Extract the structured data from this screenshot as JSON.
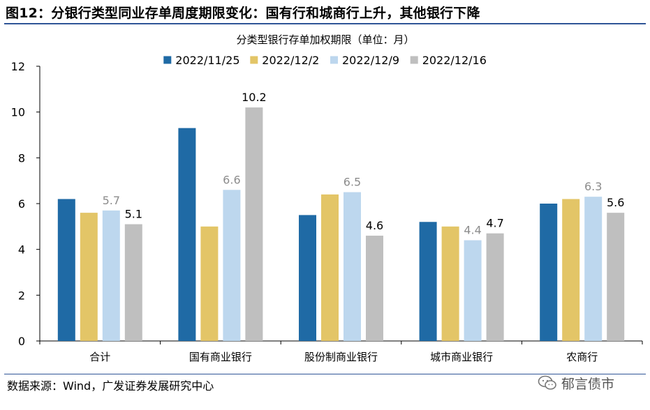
{
  "figure": {
    "title": "图12：分银行类型同业存单周度期限变化：国有行和城商行上升，其他银行下降",
    "source": "数据来源：Wind，广发证券发展研究中心",
    "watermark": "郁言债市"
  },
  "chart_data": {
    "type": "bar",
    "title": "分类型银行存单加权期限（单位：月）",
    "xlabel": "",
    "ylabel": "",
    "ylim": [
      0,
      12
    ],
    "yticks": [
      "0",
      "2",
      "4",
      "6",
      "8",
      "10",
      "12"
    ],
    "grid": false,
    "legend_position": "top",
    "categories": [
      "合计",
      "国有商业银行",
      "股份制商业银行",
      "城市商业银行",
      "农商行"
    ],
    "series": [
      {
        "name": "2022/11/25",
        "color": "#1f6aa5",
        "values": [
          6.2,
          9.3,
          5.5,
          5.2,
          6.0
        ],
        "labels": [
          "",
          "",
          "",
          "",
          ""
        ]
      },
      {
        "name": "2022/12/2",
        "color": "#e3c567",
        "values": [
          5.6,
          5.0,
          6.4,
          5.0,
          6.2
        ],
        "labels": [
          "",
          "",
          "",
          "",
          ""
        ]
      },
      {
        "name": "2022/12/9",
        "color": "#bdd7ee",
        "values": [
          5.7,
          6.6,
          6.5,
          4.4,
          6.3
        ],
        "labels": [
          "5.7",
          "6.6",
          "6.5",
          "4.4",
          "6.3"
        ]
      },
      {
        "name": "2022/12/16",
        "color": "#bfbfbf",
        "values": [
          5.1,
          10.2,
          4.6,
          4.7,
          5.6
        ],
        "labels": [
          "5.1",
          "10.2",
          "4.6",
          "4.7",
          "5.6"
        ]
      }
    ],
    "label_colors": {
      "2022/12/9": "#8c8c8c",
      "2022/12/16": "#000000"
    }
  }
}
